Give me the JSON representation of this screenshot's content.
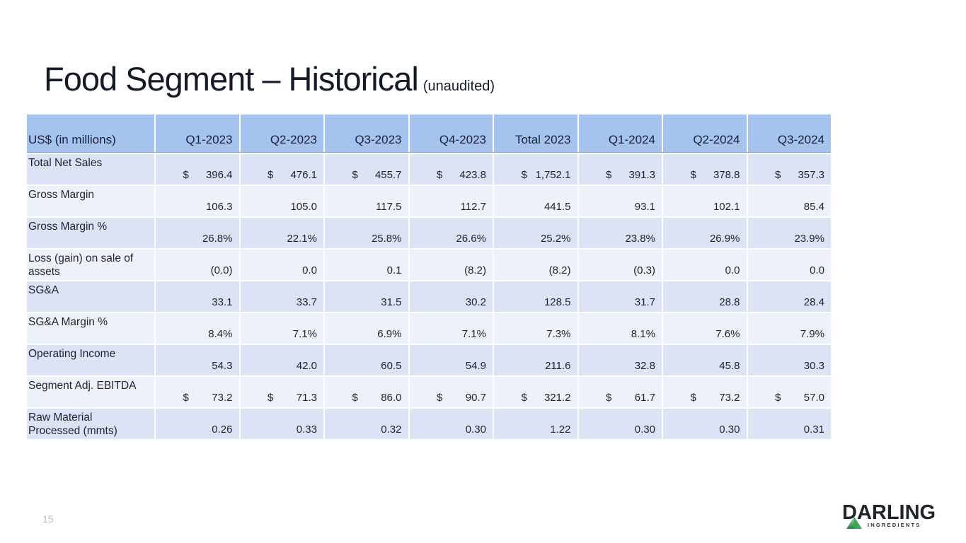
{
  "slide": {
    "title": "Food Segment – Historical",
    "title_suffix": "(unaudited)",
    "page_number": "15"
  },
  "table": {
    "currency_symbol": "$",
    "columns": [
      "US$ (in millions)",
      "Q1-2023",
      "Q2-2023",
      "Q3-2023",
      "Q4-2023",
      "Total 2023",
      "Q1-2024",
      "Q2-2024",
      "Q3-2024"
    ],
    "rows": [
      {
        "label": "Total Net Sales",
        "currency": true,
        "values": [
          "396.4",
          "476.1",
          "455.7",
          "423.8",
          "1,752.1",
          "391.3",
          "378.8",
          "357.3"
        ]
      },
      {
        "label": "Gross Margin",
        "currency": false,
        "values": [
          "106.3",
          "105.0",
          "117.5",
          "112.7",
          "441.5",
          "93.1",
          "102.1",
          "85.4"
        ]
      },
      {
        "label": "Gross Margin %",
        "currency": false,
        "values": [
          "26.8%",
          "22.1%",
          "25.8%",
          "26.6%",
          "25.2%",
          "23.8%",
          "26.9%",
          "23.9%"
        ]
      },
      {
        "label": "Loss (gain) on sale of assets",
        "currency": false,
        "values": [
          "(0.0)",
          "0.0",
          "0.1",
          "(8.2)",
          "(8.2)",
          "(0.3)",
          "0.0",
          "0.0"
        ]
      },
      {
        "label": "SG&A",
        "currency": false,
        "values": [
          "33.1",
          "33.7",
          "31.5",
          "30.2",
          "128.5",
          "31.7",
          "28.8",
          "28.4"
        ]
      },
      {
        "label": "SG&A Margin %",
        "currency": false,
        "values": [
          "8.4%",
          "7.1%",
          "6.9%",
          "7.1%",
          "7.3%",
          "8.1%",
          "7.6%",
          "7.9%"
        ]
      },
      {
        "label": "Operating Income",
        "currency": false,
        "values": [
          "54.3",
          "42.0",
          "60.5",
          "54.9",
          "211.6",
          "32.8",
          "45.8",
          "30.3"
        ]
      },
      {
        "label": "Segment Adj. EBITDA",
        "currency": true,
        "values": [
          "73.2",
          "71.3",
          "86.0",
          "90.7",
          "321.2",
          "61.7",
          "73.2",
          "57.0"
        ]
      },
      {
        "label": "Raw Material Processed (mmts)",
        "currency": false,
        "values": [
          "0.26",
          "0.33",
          "0.32",
          "0.30",
          "1.22",
          "0.30",
          "0.30",
          "0.31"
        ]
      }
    ]
  },
  "logo": {
    "name": "DARLING",
    "sub": "INGREDIENTS",
    "triangle_green_dark": "#1b8a3c",
    "triangle_green_light": "#9be0a5"
  },
  "colors": {
    "header_bg": "#a6c2ee",
    "row_dark": "#dbe3f4",
    "row_light": "#edf1fa",
    "header_border": "#8fa2c4",
    "title_text": "#141a28",
    "page_number": "#b6bdd0"
  }
}
